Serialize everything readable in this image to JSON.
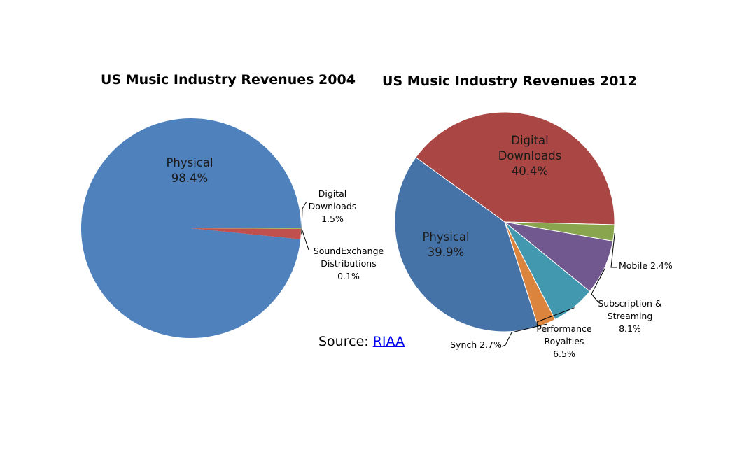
{
  "chart_data": [
    {
      "type": "pie",
      "title": "US Music Industry Revenues 2004",
      "slices": [
        {
          "label": [
            "Physical"
          ],
          "pct_label": "98.4%",
          "value": 98.4,
          "color": "#4f81bd"
        },
        {
          "label": [
            "Digital",
            "Downloads"
          ],
          "pct_label": "1.5%",
          "value": 1.5,
          "color": "#c0504d"
        },
        {
          "label": [
            "SoundExchange",
            "Distributions"
          ],
          "pct_label": "0.1%",
          "value": 0.1,
          "color": "#9bbb59"
        }
      ]
    },
    {
      "type": "pie",
      "title": "US Music Industry Revenues 2012",
      "slices": [
        {
          "label": [
            "Digital",
            "Downloads"
          ],
          "pct_label": "40.4%",
          "value": 40.4,
          "color": "#aa4643"
        },
        {
          "label": [
            "Mobile"
          ],
          "pct_label": "2.4%",
          "value": 2.4,
          "color": "#89a54e"
        },
        {
          "label": [
            "Subscription &",
            "Streaming"
          ],
          "pct_label": "8.1%",
          "value": 8.1,
          "color": "#71588f"
        },
        {
          "label": [
            "Performance",
            "Royalties"
          ],
          "pct_label": "6.5%",
          "value": 6.5,
          "color": "#4198af"
        },
        {
          "label": [
            "Synch"
          ],
          "pct_label": "2.7%",
          "value": 2.7,
          "color": "#db843d"
        },
        {
          "label": [
            "Physical"
          ],
          "pct_label": "39.9%",
          "value": 39.9,
          "color": "#4572a7"
        }
      ]
    }
  ],
  "source": {
    "prefix": "Source: ",
    "link_text": "RIAA"
  }
}
